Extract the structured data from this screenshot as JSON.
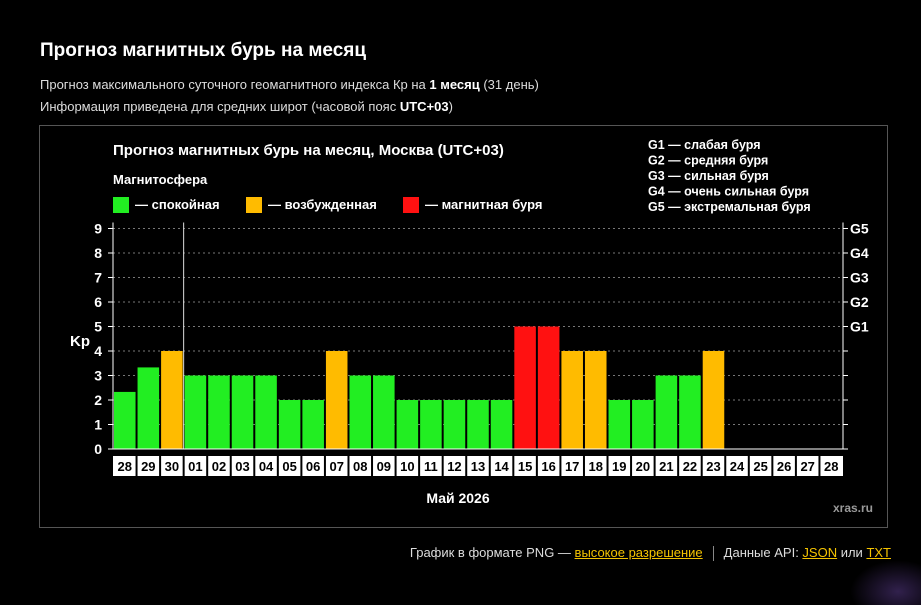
{
  "header": {
    "title": "Прогноз магнитных бурь на месяц",
    "sub1_prefix": "Прогноз максимального суточного геомагнитного индекса Кр на ",
    "sub1_bold": "1 месяц",
    "sub1_suffix": " (31 день)",
    "sub2_prefix": "Информация приведена для средних широт (часовой пояс ",
    "sub2_bold": "UTC+03",
    "sub2_suffix": ")"
  },
  "chart_data": {
    "type": "bar",
    "title": "Прогноз магнитных бурь на месяц, Москва (UTC+03)",
    "legend_title": "Магнитосфера",
    "legend": [
      {
        "key": "calm",
        "label": "— спокойная",
        "color": "#22ee22"
      },
      {
        "key": "excited",
        "label": "— возбужденная",
        "color": "#ffbb00"
      },
      {
        "key": "storm",
        "label": "— магнитная буря",
        "color": "#ff1111"
      }
    ],
    "g_scale_legend": [
      "G1 — слабая буря",
      "G2 — средняя буря",
      "G3 — сильная буря",
      "G4 — очень сильная буря",
      "G5 — экстремальная буря"
    ],
    "ylabel": "Kp",
    "xlabel": "Май 2026",
    "ylim": [
      0,
      9
    ],
    "yticks": [
      "0",
      "1",
      "2",
      "3",
      "4",
      "5",
      "6",
      "7",
      "8",
      "9"
    ],
    "right_axis_labels": [
      "G1",
      "G2",
      "G3",
      "G4",
      "G5"
    ],
    "right_axis_levels": [
      5,
      6,
      7,
      8,
      9
    ],
    "grid": true,
    "watermark": "xras.ru",
    "categories": [
      "28",
      "29",
      "30",
      "01",
      "02",
      "03",
      "04",
      "05",
      "06",
      "07",
      "08",
      "09",
      "10",
      "11",
      "12",
      "13",
      "14",
      "15",
      "16",
      "17",
      "18",
      "19",
      "20",
      "21",
      "22",
      "23",
      "24",
      "25",
      "26",
      "27",
      "28"
    ],
    "values": [
      2.33,
      3.33,
      4,
      3,
      3,
      3,
      3,
      2,
      2,
      4,
      3,
      3,
      2,
      2,
      2,
      2,
      2,
      5,
      5,
      4,
      4,
      2,
      2,
      3,
      3,
      4,
      null,
      null,
      null,
      null,
      null
    ],
    "levels": [
      "calm",
      "calm",
      "excited",
      "calm",
      "calm",
      "calm",
      "calm",
      "calm",
      "calm",
      "excited",
      "calm",
      "calm",
      "calm",
      "calm",
      "calm",
      "calm",
      "calm",
      "storm",
      "storm",
      "excited",
      "excited",
      "calm",
      "calm",
      "calm",
      "calm",
      "excited",
      null,
      null,
      null,
      null,
      null
    ],
    "today_after_index": 2
  },
  "footer": {
    "png_text": "График в формате PNG — ",
    "png_link": "высокое разрешение",
    "api_text": "Данные API: ",
    "json_link": "JSON",
    "or_text": " или ",
    "txt_link": "TXT"
  }
}
